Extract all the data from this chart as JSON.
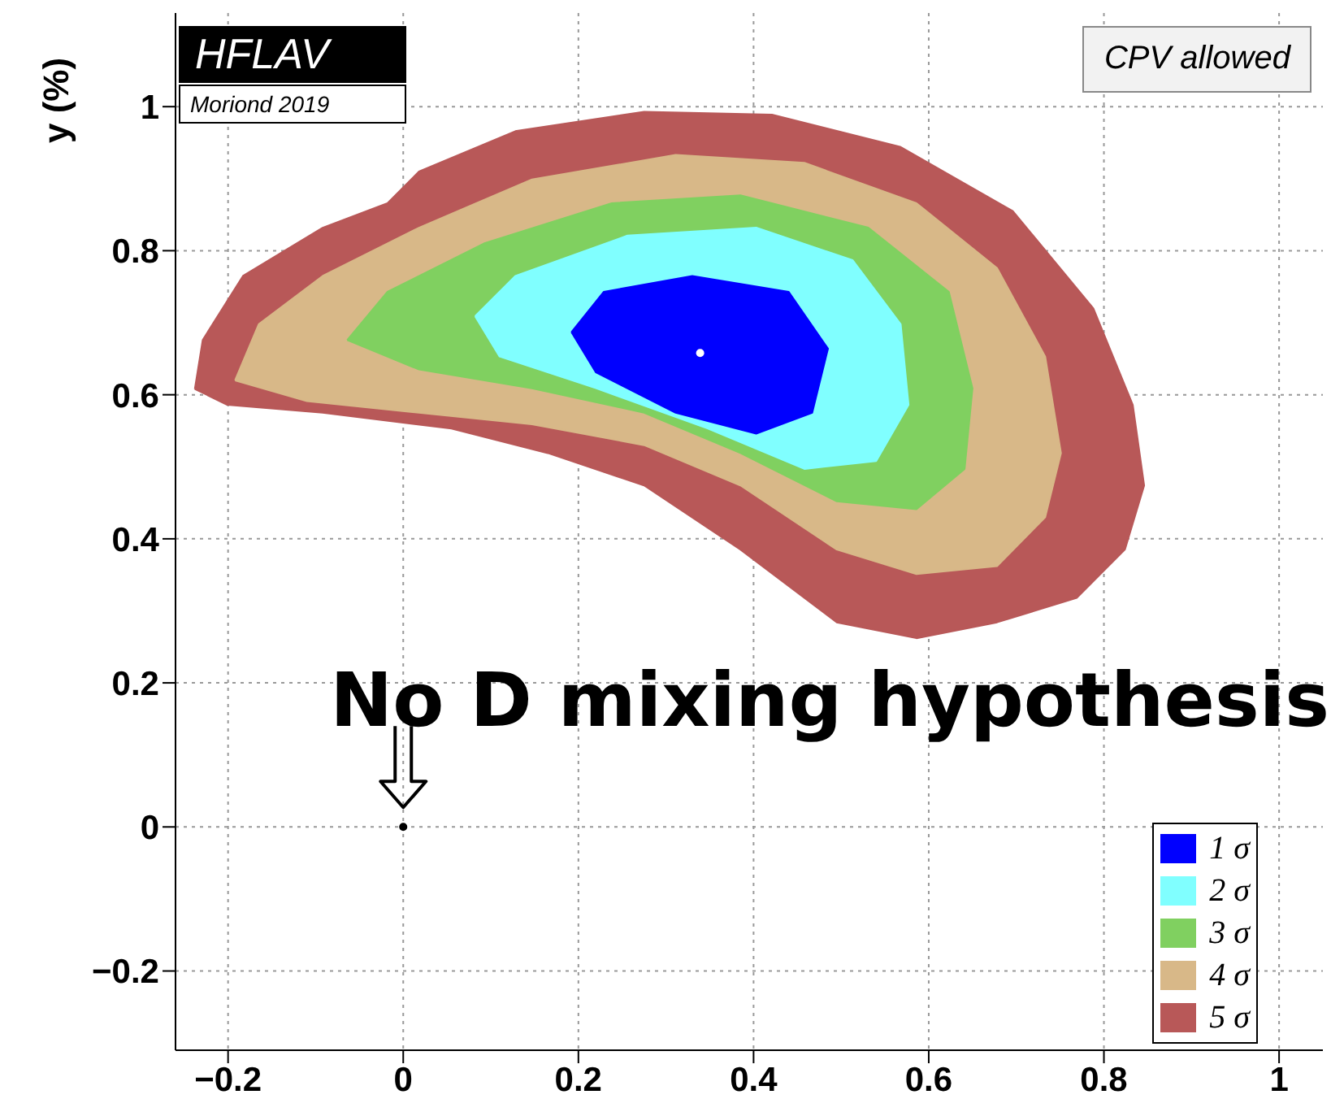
{
  "chart_data": {
    "type": "area",
    "ylabel": "y (%)",
    "annotations": [
      "HFLAV",
      "Moriond 2019",
      "CPV allowed",
      {
        "text": "No D mixing hypothesis",
        "x": 0,
        "y": 0
      }
    ],
    "xlim": [
      -0.26,
      1.05
    ],
    "ylim": [
      -0.31,
      1.13
    ],
    "xticks": [
      {
        "value": -0.2,
        "label": "−0.2"
      },
      0,
      0.2,
      0.4,
      0.6,
      0.8,
      1
    ],
    "yticks": [
      {
        "value": -0.2,
        "label": "−0.2"
      },
      0,
      0.2,
      0.4,
      0.6,
      0.8,
      1
    ],
    "grid": true,
    "legend": "bottom right",
    "line_style": "dotted",
    "series": [
      {
        "name": "1 σ",
        "color": "#0000ff",
        "x": [
          0.192,
          0.229,
          0.33,
          0.44,
          0.485,
          0.467,
          0.403,
          0.311,
          0.22,
          0.192
        ],
        "values": [
          0.687,
          0.743,
          0.765,
          0.743,
          0.664,
          0.575,
          0.546,
          0.575,
          0.631,
          0.687
        ]
      },
      {
        "name": "2 σ",
        "color": "#80ffff",
        "x": [
          0.082,
          0.128,
          0.256,
          0.403,
          0.513,
          0.568,
          0.577,
          0.54,
          0.458,
          0.348,
          0.22,
          0.11,
          0.082
        ],
        "values": [
          0.709,
          0.765,
          0.821,
          0.832,
          0.787,
          0.698,
          0.586,
          0.508,
          0.497,
          0.553,
          0.609,
          0.653,
          0.709
        ]
      },
      {
        "name": "3 σ",
        "color": "#80d060",
        "x": [
          -0.064,
          -0.018,
          0.092,
          0.238,
          0.385,
          0.531,
          0.623,
          0.65,
          0.641,
          0.586,
          0.495,
          0.385,
          0.275,
          0.147,
          0.018,
          -0.064
        ],
        "values": [
          0.676,
          0.743,
          0.81,
          0.866,
          0.877,
          0.832,
          0.743,
          0.609,
          0.497,
          0.441,
          0.452,
          0.519,
          0.575,
          0.609,
          0.635,
          0.676
        ]
      },
      {
        "name": "4 σ",
        "color": "#d8b888",
        "x": [
          -0.192,
          -0.165,
          -0.092,
          0.018,
          0.147,
          0.311,
          0.458,
          0.586,
          0.678,
          0.733,
          0.751,
          0.733,
          0.678,
          0.586,
          0.495,
          0.385,
          0.275,
          0.147,
          0.018,
          -0.11,
          -0.192
        ],
        "values": [
          0.62,
          0.698,
          0.765,
          0.832,
          0.899,
          0.933,
          0.922,
          0.866,
          0.776,
          0.653,
          0.519,
          0.43,
          0.362,
          0.351,
          0.385,
          0.474,
          0.53,
          0.559,
          0.575,
          0.591,
          0.62
        ]
      },
      {
        "name": "5 σ",
        "color": "#b85858",
        "x": [
          -0.238,
          -0.229,
          -0.183,
          -0.092,
          -0.018,
          0.018,
          0.128,
          0.275,
          0.421,
          0.568,
          0.696,
          0.788,
          0.833,
          0.846,
          0.824,
          0.769,
          0.678,
          0.586,
          0.495,
          0.385,
          0.275,
          0.165,
          0.055,
          -0.092,
          -0.201,
          -0.238
        ],
        "values": [
          0.608,
          0.676,
          0.765,
          0.832,
          0.866,
          0.91,
          0.966,
          0.993,
          0.989,
          0.944,
          0.855,
          0.72,
          0.586,
          0.474,
          0.385,
          0.318,
          0.284,
          0.262,
          0.284,
          0.385,
          0.474,
          0.519,
          0.553,
          0.575,
          0.586,
          0.608
        ]
      },
      {
        "type": "scatter",
        "color": "#ffffff",
        "x": [
          0.339
        ],
        "values": [
          0.658
        ],
        "marker": "circle"
      },
      {
        "type": "scatter",
        "color": "#000000",
        "x": [
          0
        ],
        "values": [
          0
        ],
        "marker": "circle"
      }
    ]
  }
}
